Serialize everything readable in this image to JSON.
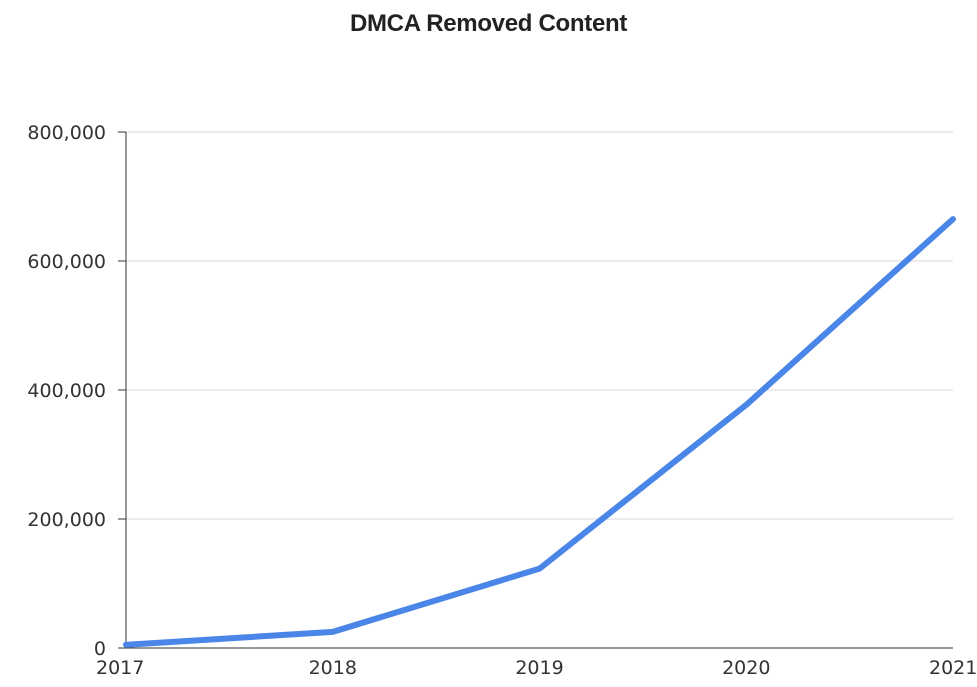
{
  "chart_data": {
    "type": "line",
    "title": "DMCA Removed Content",
    "xlabel": "",
    "ylabel": "",
    "x": [
      "2017",
      "2018",
      "2019",
      "2020",
      "2021"
    ],
    "series": [
      {
        "values": [
          5000,
          25000,
          123000,
          377000,
          665000
        ]
      }
    ],
    "yticks": [
      "0",
      "200,000",
      "400,000",
      "600,000",
      "800,000"
    ],
    "ytick_values": [
      0,
      200000,
      400000,
      600000,
      800000
    ],
    "ylim": [
      0,
      800000
    ],
    "grid": true,
    "legend": "none",
    "colors": {
      "line": "#4a86e8",
      "grid": "#d9d9d9",
      "axis": "#333333"
    }
  }
}
